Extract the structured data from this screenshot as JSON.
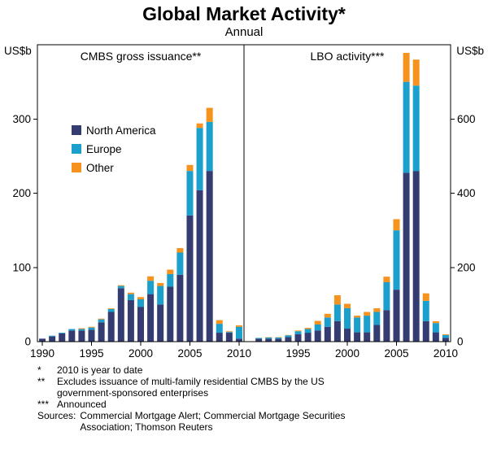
{
  "title": "Global Market Activity*",
  "subtitle": "Annual",
  "y_axis_unit_left": "US$b",
  "y_axis_unit_right": "US$b",
  "legend": {
    "position": "upper-left-inside-left-panel",
    "items": [
      {
        "label": "North America",
        "color": "#343C72"
      },
      {
        "label": "Europe",
        "color": "#1B9FCC"
      },
      {
        "label": "Other",
        "color": "#F6921E"
      }
    ]
  },
  "chart_data": [
    {
      "type": "bar",
      "stacked": true,
      "panel_label": "CMBS gross issuance**",
      "ylabel": "US$b",
      "ylim": [
        0,
        400
      ],
      "yticks": [
        0,
        100,
        200,
        300
      ],
      "xticks": [
        1990,
        1995,
        2000,
        2005,
        2010
      ],
      "x": [
        1990,
        1991,
        1992,
        1993,
        1994,
        1995,
        1996,
        1997,
        1998,
        1999,
        2000,
        2001,
        2002,
        2003,
        2004,
        2005,
        2006,
        2007,
        2008,
        2009,
        2010
      ],
      "series": [
        {
          "name": "North America",
          "color": "#343C72",
          "values": [
            4,
            7,
            11,
            15,
            15,
            16,
            26,
            40,
            72,
            56,
            47,
            64,
            50,
            74,
            90,
            170,
            204,
            230,
            12,
            12,
            4
          ]
        },
        {
          "name": "Europe",
          "color": "#1B9FCC",
          "values": [
            0,
            1,
            1,
            2,
            2,
            3,
            4,
            4,
            3,
            8,
            10,
            18,
            25,
            17,
            30,
            60,
            84,
            66,
            12,
            1,
            16
          ]
        },
        {
          "name": "Other",
          "color": "#F6921E",
          "values": [
            0,
            0,
            0,
            0,
            1,
            1,
            1,
            1,
            1,
            2,
            3,
            6,
            4,
            6,
            6,
            8,
            6,
            19,
            5,
            1,
            2
          ]
        }
      ]
    },
    {
      "type": "bar",
      "stacked": true,
      "panel_label": "LBO activity***",
      "ylabel": "US$b",
      "ylim": [
        0,
        800
      ],
      "yticks": [
        0,
        200,
        400,
        600
      ],
      "xticks": [
        1995,
        2000,
        2005,
        2010
      ],
      "x": [
        1990,
        1991,
        1992,
        1993,
        1994,
        1995,
        1996,
        1997,
        1998,
        1999,
        2000,
        2001,
        2002,
        2003,
        2004,
        2005,
        2006,
        2007,
        2008,
        2009,
        2010
      ],
      "series": [
        {
          "name": "North America",
          "color": "#343C72",
          "values": [
            0,
            8,
            8,
            8,
            12,
            20,
            24,
            30,
            40,
            55,
            35,
            25,
            25,
            45,
            85,
            140,
            455,
            460,
            55,
            25,
            10
          ]
        },
        {
          "name": "Europe",
          "color": "#1B9FCC",
          "values": [
            0,
            2,
            3,
            3,
            5,
            8,
            10,
            16,
            25,
            45,
            55,
            40,
            45,
            35,
            75,
            160,
            245,
            230,
            55,
            25,
            8
          ]
        },
        {
          "name": "Other",
          "color": "#F6921E",
          "values": [
            0,
            0,
            1,
            1,
            1,
            2,
            3,
            10,
            10,
            25,
            12,
            5,
            10,
            10,
            15,
            30,
            78,
            70,
            20,
            5,
            2
          ]
        }
      ]
    }
  ],
  "footnotes": [
    {
      "marker": "*",
      "text": "2010 is year to date"
    },
    {
      "marker": "**",
      "text": "Excludes issuance of multi-family residential CMBS by the US government-sponsored enterprises"
    },
    {
      "marker": "***",
      "text": "Announced"
    },
    {
      "marker": "Sources:",
      "text": "Commercial Mortgage Alert; Commercial Mortgage Securities Association; Thomson Reuters"
    }
  ]
}
